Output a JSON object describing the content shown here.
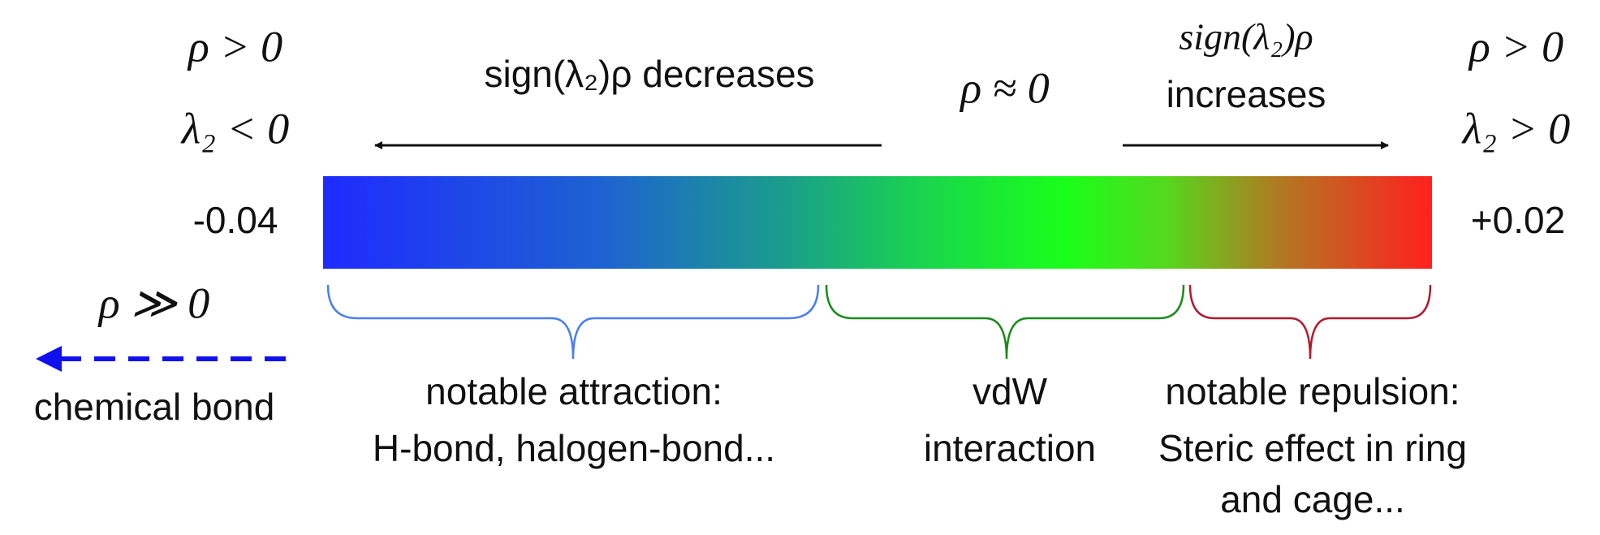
{
  "left": {
    "rho": "ρ > 0",
    "lambda": "λ₂ < 0",
    "value": "-0.04"
  },
  "right": {
    "rho": "ρ > 0",
    "lambda": "λ₂ > 0",
    "value": "+0.02"
  },
  "arrows": {
    "decrease": "sign(λ₂)ρ decreases",
    "center": "ρ ≈ 0",
    "increase": [
      "sign(λ₂)ρ",
      "increases"
    ]
  },
  "bond": {
    "rho": "ρ ≫ 0",
    "label": "chemical bond"
  },
  "regions": [
    {
      "lines": [
        "notable attraction:",
        "H-bond, halogen-bond..."
      ]
    },
    {
      "lines": [
        "vdW",
        "interaction"
      ]
    },
    {
      "lines": [
        "notable repulsion:",
        "Steric effect in ring",
        "and cage..."
      ]
    }
  ]
}
